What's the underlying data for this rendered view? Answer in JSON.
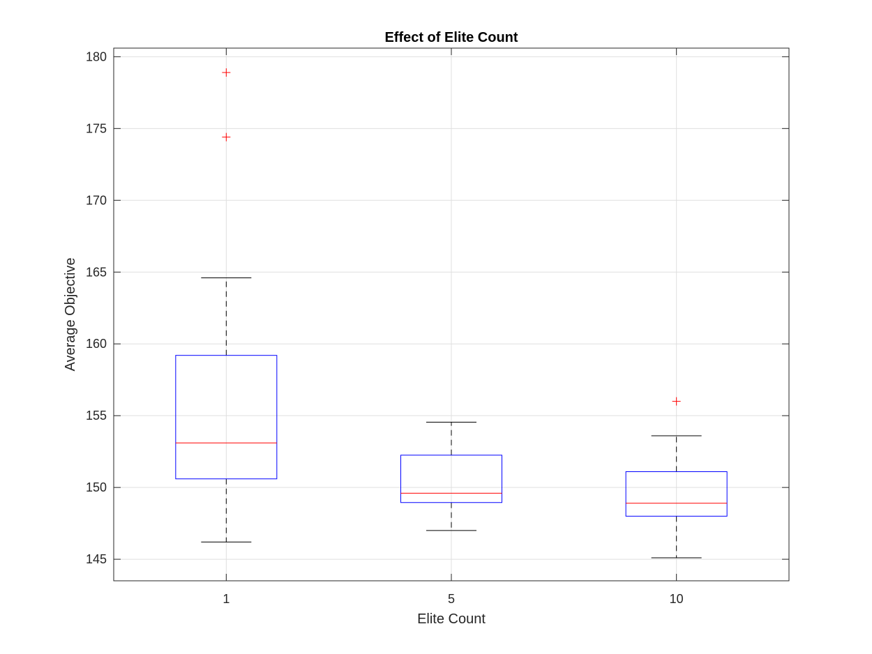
{
  "chart_data": {
    "type": "box",
    "title": "Effect of Elite Count",
    "xlabel": "Elite Count",
    "ylabel": "Average Objective",
    "categories": [
      "1",
      "5",
      "10"
    ],
    "ylim": [
      143.5,
      180.6
    ],
    "yticks": [
      145,
      150,
      155,
      160,
      165,
      170,
      175,
      180
    ],
    "grid": true,
    "boxes": [
      {
        "category": "1",
        "whisker_low": 146.2,
        "q1": 150.6,
        "median": 153.1,
        "q3": 159.2,
        "whisker_high": 164.6,
        "outliers": [
          174.4,
          178.9
        ]
      },
      {
        "category": "5",
        "whisker_low": 147.0,
        "q1": 148.95,
        "median": 149.6,
        "q3": 152.25,
        "whisker_high": 154.55,
        "outliers": []
      },
      {
        "category": "10",
        "whisker_low": 145.1,
        "q1": 148.0,
        "median": 148.9,
        "q3": 151.1,
        "whisker_high": 153.6,
        "outliers": [
          156.0
        ]
      }
    ],
    "colors": {
      "box": "#0000ff",
      "median": "#ff0000",
      "outlier": "#ff0000",
      "whisker": "#000000",
      "grid": "#dfdfdf",
      "axis": "#262626"
    }
  }
}
